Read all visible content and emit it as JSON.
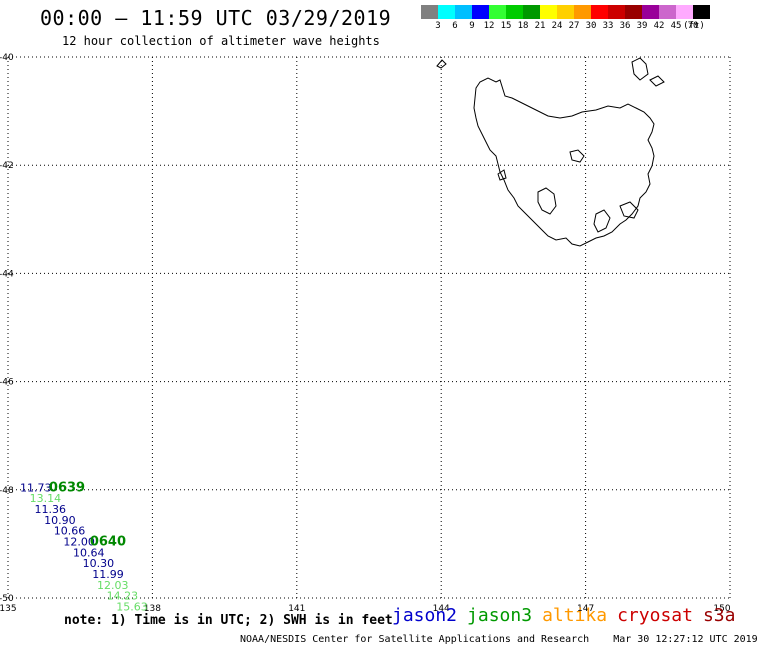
{
  "header": {
    "title": "00:00 — 11:59 UTC 03/29/2019",
    "subtitle": "12 hour collection of altimeter wave heights"
  },
  "legend": {
    "unit": "(ft)",
    "bins": [
      {
        "label": "3",
        "color": "#808080"
      },
      {
        "label": "6",
        "color": "#00ffff"
      },
      {
        "label": "9",
        "color": "#00bfff"
      },
      {
        "label": "12",
        "color": "#0000ff"
      },
      {
        "label": "15",
        "color": "#33ff33"
      },
      {
        "label": "18",
        "color": "#00cc00"
      },
      {
        "label": "21",
        "color": "#009900"
      },
      {
        "label": "24",
        "color": "#ffff00"
      },
      {
        "label": "27",
        "color": "#ffd000"
      },
      {
        "label": "30",
        "color": "#ff9900"
      },
      {
        "label": "33",
        "color": "#ff0000"
      },
      {
        "label": "36",
        "color": "#cc0000"
      },
      {
        "label": "39",
        "color": "#990000"
      },
      {
        "label": "42",
        "color": "#990099"
      },
      {
        "label": "45",
        "color": "#cc66cc"
      },
      {
        "label": "70",
        "color": "#ffaaff"
      },
      {
        "label": "",
        "color": "#000000"
      }
    ]
  },
  "map": {
    "lon_range": [
      135,
      150
    ],
    "lat_range": [
      -50,
      -40
    ],
    "lon_ticks": [
      "135",
      "138",
      "141",
      "144",
      "147",
      "150"
    ],
    "lat_ticks": [
      "-40",
      "-42",
      "-44",
      "-46",
      "-48",
      "-50"
    ],
    "grid": "dotted"
  },
  "track": {
    "observations": [
      {
        "text": "11.73",
        "lon": 135.25,
        "lat": -48.03,
        "color": "#00008b"
      },
      {
        "text": "13.14",
        "lon": 135.45,
        "lat": -48.23,
        "color": "#66dd66"
      },
      {
        "text": "11.36",
        "lon": 135.55,
        "lat": -48.43,
        "color": "#00008b"
      },
      {
        "text": "10.90",
        "lon": 135.75,
        "lat": -48.63,
        "color": "#00008b"
      },
      {
        "text": "10.66",
        "lon": 135.95,
        "lat": -48.83,
        "color": "#00008b"
      },
      {
        "text": "12.00",
        "lon": 136.15,
        "lat": -49.03,
        "color": "#00008b"
      },
      {
        "text": "10.64",
        "lon": 136.35,
        "lat": -49.23,
        "color": "#00008b"
      },
      {
        "text": "10.30",
        "lon": 136.55,
        "lat": -49.43,
        "color": "#00008b"
      },
      {
        "text": "11.99",
        "lon": 136.75,
        "lat": -49.63,
        "color": "#00008b"
      },
      {
        "text": "12.03",
        "lon": 136.85,
        "lat": -49.83,
        "color": "#66dd66"
      },
      {
        "text": "14.23",
        "lon": 137.05,
        "lat": -50.03,
        "color": "#66dd66"
      },
      {
        "text": "15.63",
        "lon": 137.25,
        "lat": -50.23,
        "color": "#66dd66"
      }
    ],
    "pass_times": [
      {
        "text": "0639",
        "lon": 135.85,
        "lat": -48.03,
        "color": "#008800"
      },
      {
        "text": "0640",
        "lon": 136.7,
        "lat": -49.03,
        "color": "#008800"
      }
    ]
  },
  "footer": {
    "note": "note: 1) Time is in UTC; 2) SWH is in feet",
    "satellites": [
      {
        "name": "jason2",
        "color": "#0000cc"
      },
      {
        "name": "jason3",
        "color": "#009900"
      },
      {
        "name": "altika",
        "color": "#ff9900"
      },
      {
        "name": "cryosat",
        "color": "#cc0000"
      },
      {
        "name": "s3a",
        "color": "#990000"
      }
    ],
    "credit": "NOAA/NESDIS Center for Satellite Applications and Research",
    "generated": "Mar 30 12:27:12 UTC 2019"
  }
}
